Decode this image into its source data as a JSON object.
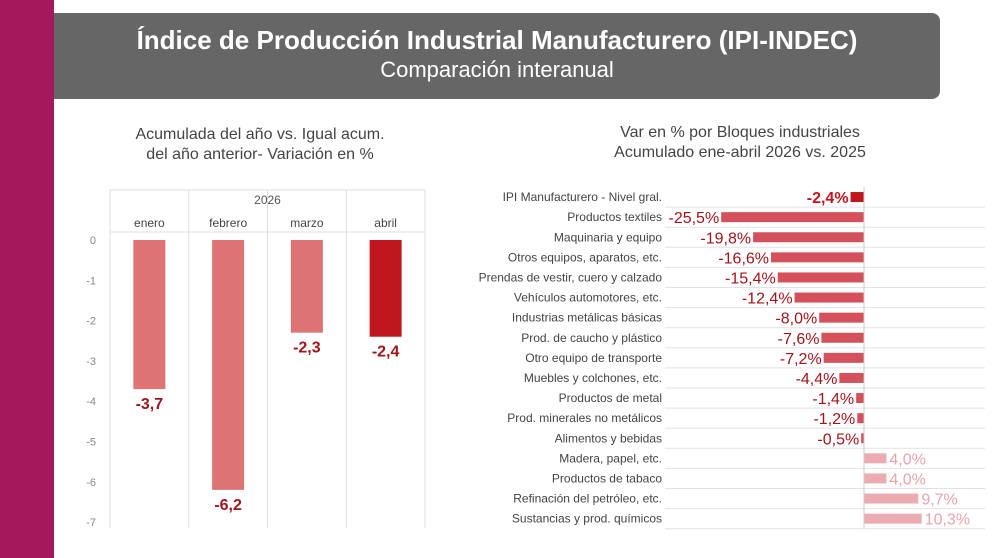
{
  "header": {
    "title": "Índice de Producción Industrial Manufacturero (IPI-INDEC)",
    "subtitle": "Comparación interanual"
  },
  "chart_data": [
    {
      "type": "bar",
      "title": [
        "Acumulada del año vs. Igual acum.",
        "del año anterior- Variación en %"
      ],
      "group_label": "2026",
      "categories": [
        "enero",
        "febrero",
        "marzo",
        "abril"
      ],
      "values": [
        -3.7,
        -6.2,
        -2.3,
        -2.4
      ],
      "value_labels": [
        "-3,7",
        "-6,2",
        "-2,3",
        "-2,4"
      ],
      "yticks": [
        "0",
        "-1",
        "-2",
        "-3",
        "-4",
        "-5",
        "-6",
        "-7"
      ],
      "ylim": [
        -7,
        0
      ],
      "highlight_index": 3,
      "colors": {
        "bar": "#de7373",
        "highlight": "#c0161d",
        "label": "#a0151a"
      }
    },
    {
      "type": "bar",
      "orientation": "horizontal",
      "title": [
        "Var en % por Bloques industriales",
        "Acumulado ene-abril 2026 vs. 2025"
      ],
      "categories": [
        "IPI Manufacturero - Nivel gral.",
        "Productos textiles",
        "Maquinaria y equipo",
        "Otros equipos, aparatos, etc.",
        "Prendas de vestir, cuero y calzado",
        "Vehículos automotores, etc.",
        "Industrias metálicas básicas",
        "Prod. de caucho y plástico",
        "Otro equipo de transporte",
        "Muebles y colchones, etc.",
        "Productos de metal",
        "Prod. minerales no metálicos",
        "Alimentos y bebidas",
        "Madera, papel, etc.",
        "Productos de tabaco",
        "Refinación del petróleo, etc.",
        "Sustancias y prod. químicos"
      ],
      "values": [
        -2.4,
        -25.5,
        -19.8,
        -16.6,
        -15.4,
        -12.4,
        -8.0,
        -7.6,
        -7.2,
        -4.4,
        -1.4,
        -1.2,
        -0.5,
        4.0,
        4.0,
        9.7,
        10.3
      ],
      "value_labels": [
        "-2,4%",
        "-25,5%",
        "-19,8%",
        "-16,6%",
        "-15,4%",
        "-12,4%",
        "-8,0%",
        "-7,6%",
        "-7,2%",
        "-4,4%",
        "-1,4%",
        "-1,2%",
        "-0,5%",
        "4,0%",
        "4,0%",
        "9,7%",
        "10,3%"
      ],
      "highlight_index": 0,
      "colors": {
        "negative": "#d4505a",
        "positive": "#ecabb1",
        "highlight": "#c0161d",
        "negative_label": "#a0151a",
        "positive_label": "#e8a4aa"
      }
    }
  ]
}
